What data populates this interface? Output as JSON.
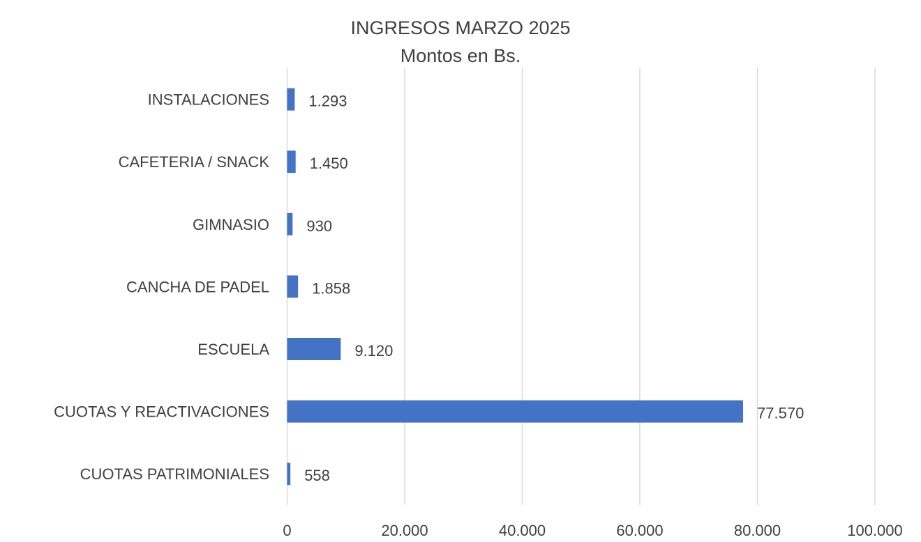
{
  "chart_data": {
    "type": "bar",
    "orientation": "horizontal",
    "title": "INGRESOS MARZO 2025",
    "subtitle": "Montos en Bs.",
    "categories": [
      "CUOTAS PATRIMONIALES",
      "CUOTAS Y REACTIVACIONES",
      "ESCUELA",
      "CANCHA DE PADEL",
      "GIMNASIO",
      "CAFETERIA / SNACK",
      "INSTALACIONES"
    ],
    "values": [
      558,
      77570,
      9120,
      1858,
      930,
      1450,
      1293
    ],
    "value_labels": [
      "558",
      "77.570",
      "9.120",
      "1.858",
      "930",
      "1.450",
      "1.293"
    ],
    "xlim": [
      0,
      100000
    ],
    "x_ticks": [
      0,
      20000,
      40000,
      60000,
      80000,
      100000
    ],
    "x_tick_labels": [
      "0",
      "20.000",
      "40.000",
      "60.000",
      "80.000",
      "100.000"
    ],
    "xlabel": "",
    "ylabel": "",
    "grid": "vertical",
    "legend": "none",
    "bar_color": "#4472C4",
    "grid_color": "#D9D9D9"
  }
}
